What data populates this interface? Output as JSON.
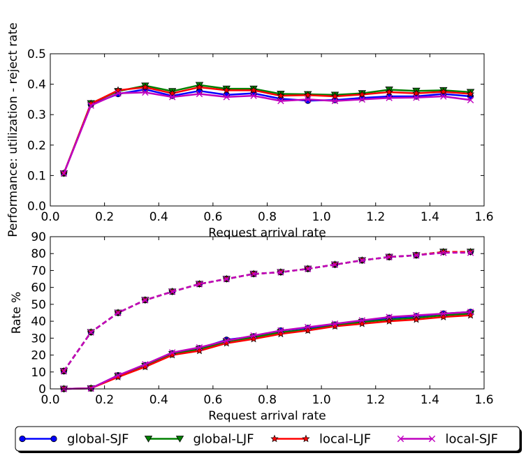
{
  "colors": {
    "global-SJF": "#0000ff",
    "global-LJF": "#008000",
    "local-LJF": "#ff0000",
    "local-SJF": "#bf00bf"
  },
  "legend": {
    "entries": [
      {
        "label": "global-SJF",
        "marker": "circle",
        "color": "#0000ff"
      },
      {
        "label": "global-LJF",
        "marker": "triangle-down",
        "color": "#008000"
      },
      {
        "label": "local-LJF",
        "marker": "star",
        "color": "#ff0000"
      },
      {
        "label": "local-SJF",
        "marker": "x",
        "color": "#bf00bf"
      }
    ],
    "placement": "bottom-center"
  },
  "chart_data": [
    {
      "type": "line",
      "ylabel": "Performance: utilization - reject rate",
      "xlabel": "Request arrival rate",
      "xlim": [
        0.0,
        1.6
      ],
      "ylim": [
        0.0,
        0.5
      ],
      "xticks": [
        "0.0",
        "0.2",
        "0.4",
        "0.6",
        "0.8",
        "1.0",
        "1.2",
        "1.4",
        "1.6"
      ],
      "yticks": [
        "0.0",
        "0.1",
        "0.2",
        "0.3",
        "0.4",
        "0.5"
      ],
      "grid": false,
      "x": [
        0.05,
        0.15,
        0.25,
        0.35,
        0.45,
        0.55,
        0.65,
        0.75,
        0.85,
        0.95,
        1.05,
        1.15,
        1.25,
        1.35,
        1.45,
        1.55
      ],
      "series": [
        {
          "name": "global-SJF",
          "marker": "circle",
          "color": "#0000ff",
          "values": [
            0.107,
            0.333,
            0.368,
            0.383,
            0.362,
            0.378,
            0.365,
            0.37,
            0.352,
            0.346,
            0.348,
            0.355,
            0.36,
            0.36,
            0.368,
            0.36
          ]
        },
        {
          "name": "global-LJF",
          "marker": "triangle-down",
          "color": "#008000",
          "values": [
            0.107,
            0.337,
            0.377,
            0.395,
            0.377,
            0.397,
            0.385,
            0.385,
            0.368,
            0.367,
            0.365,
            0.37,
            0.382,
            0.378,
            0.38,
            0.374
          ]
        },
        {
          "name": "local-LJF",
          "marker": "star",
          "color": "#ff0000",
          "values": [
            0.107,
            0.336,
            0.38,
            0.39,
            0.37,
            0.39,
            0.38,
            0.38,
            0.362,
            0.364,
            0.36,
            0.366,
            0.374,
            0.37,
            0.375,
            0.368
          ]
        },
        {
          "name": "local-SJF",
          "marker": "x",
          "color": "#bf00bf",
          "values": [
            0.107,
            0.33,
            0.37,
            0.373,
            0.358,
            0.368,
            0.358,
            0.362,
            0.345,
            0.35,
            0.345,
            0.35,
            0.355,
            0.356,
            0.36,
            0.348
          ]
        }
      ]
    },
    {
      "type": "line",
      "ylabel": "Rate %",
      "xlabel": "Request arrival rate",
      "xlim": [
        0.0,
        1.6
      ],
      "ylim": [
        0,
        90
      ],
      "xticks": [
        "0.0",
        "0.2",
        "0.4",
        "0.6",
        "0.8",
        "1.0",
        "1.2",
        "1.4",
        "1.6"
      ],
      "yticks": [
        "0",
        "10",
        "20",
        "30",
        "40",
        "50",
        "60",
        "70",
        "80",
        "90"
      ],
      "grid": false,
      "x": [
        0.05,
        0.15,
        0.25,
        0.35,
        0.45,
        0.55,
        0.65,
        0.75,
        0.85,
        0.95,
        1.05,
        1.15,
        1.25,
        1.35,
        1.45,
        1.55
      ],
      "series": [
        {
          "name": "global-SJF",
          "group": "solid",
          "marker": "circle",
          "color": "#0000ff",
          "values": [
            0,
            0.3,
            8,
            14,
            21,
            24,
            29,
            31,
            34.5,
            36,
            38,
            40,
            42,
            43,
            44.5,
            45.5
          ]
        },
        {
          "name": "global-LJF",
          "group": "solid",
          "marker": "triangle-down",
          "color": "#008000",
          "values": [
            0,
            0.3,
            7.5,
            13.5,
            20.5,
            23.5,
            28,
            30.5,
            33.5,
            35,
            37.5,
            39.5,
            41,
            42,
            43.5,
            44.5
          ]
        },
        {
          "name": "local-LJF",
          "group": "solid",
          "marker": "star",
          "color": "#ff0000",
          "values": [
            0,
            0.3,
            7,
            13,
            20,
            22.5,
            27,
            29.5,
            32.5,
            34.5,
            37,
            38.5,
            40,
            41,
            42.5,
            43.5
          ]
        },
        {
          "name": "local-SJF",
          "group": "solid",
          "marker": "x",
          "color": "#bf00bf",
          "values": [
            0,
            0.3,
            8,
            14.5,
            21.5,
            24.5,
            28.5,
            31.5,
            34.5,
            36.5,
            38.5,
            40.5,
            42.5,
            43.5,
            44.5,
            45.5
          ]
        },
        {
          "name": "global-SJF",
          "group": "dashed",
          "marker": "circle",
          "color": "#0000ff",
          "values": [
            10.5,
            33.5,
            45,
            52.5,
            57.5,
            62,
            65,
            68,
            69,
            71,
            73.5,
            76,
            78,
            79,
            81,
            81
          ]
        },
        {
          "name": "global-LJF",
          "group": "dashed",
          "marker": "triangle-down",
          "color": "#008000",
          "values": [
            10.5,
            33.5,
            45,
            52.5,
            57.5,
            62,
            65,
            68,
            69,
            71,
            73.5,
            76,
            78,
            79,
            81,
            81
          ]
        },
        {
          "name": "local-LJF",
          "group": "dashed",
          "marker": "star",
          "color": "#ff0000",
          "values": [
            10.5,
            33.5,
            45,
            52.5,
            57.5,
            62,
            65,
            68,
            69,
            71,
            73.5,
            76,
            78,
            79,
            81,
            81
          ]
        },
        {
          "name": "local-SJF",
          "group": "dashed",
          "marker": "x",
          "color": "#bf00bf",
          "values": [
            10.5,
            33.5,
            45,
            52.5,
            57.5,
            62,
            65,
            68,
            69,
            71,
            73.5,
            76,
            78,
            79,
            80.5,
            80.5
          ]
        }
      ]
    }
  ]
}
